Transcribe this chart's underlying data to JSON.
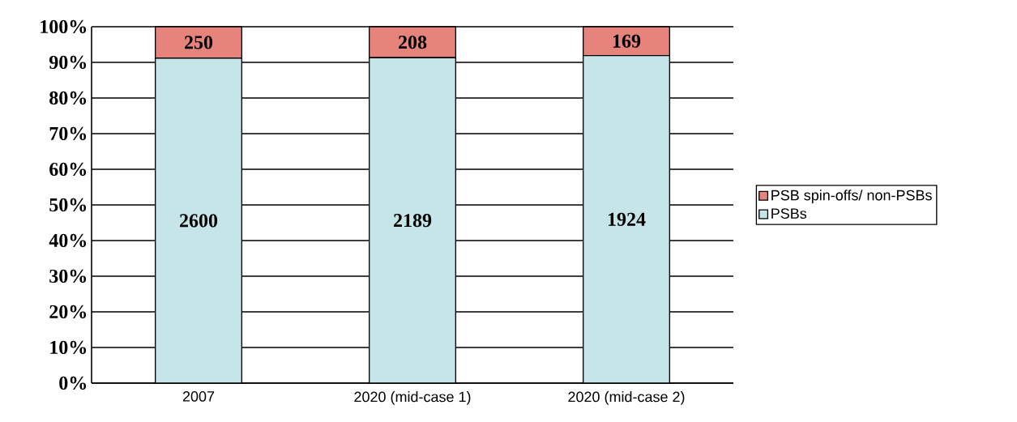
{
  "chart_data": {
    "type": "bar",
    "stacked": true,
    "categories": [
      "2007",
      "2020 (mid-case 1)",
      "2020 (mid-case 2)"
    ],
    "series": [
      {
        "name": "PSBs",
        "color": "#c6e5e8",
        "values": [
          91.2,
          91.3,
          91.9
        ]
      },
      {
        "name": "PSB spin-offs/ non-PSBs",
        "color": "#e6837b",
        "values": [
          8.8,
          8.7,
          8.1
        ]
      }
    ],
    "annotations": [
      "2600",
      "2189",
      "1924",
      "250",
      "208",
      "169"
    ],
    "ylim": [
      0,
      100
    ],
    "yticks": [
      {
        "value": 0,
        "label": "0%"
      },
      {
        "value": 10,
        "label": "10%"
      },
      {
        "value": 20,
        "label": "20%"
      },
      {
        "value": 30,
        "label": "30%"
      },
      {
        "value": 40,
        "label": "40%"
      },
      {
        "value": 50,
        "label": "50%"
      },
      {
        "value": 60,
        "label": "60%"
      },
      {
        "value": 70,
        "label": "70%"
      },
      {
        "value": 80,
        "label": "80%"
      },
      {
        "value": 90,
        "label": "90%"
      },
      {
        "value": 100,
        "label": "100%"
      }
    ],
    "grid": "y",
    "legend": "right"
  }
}
